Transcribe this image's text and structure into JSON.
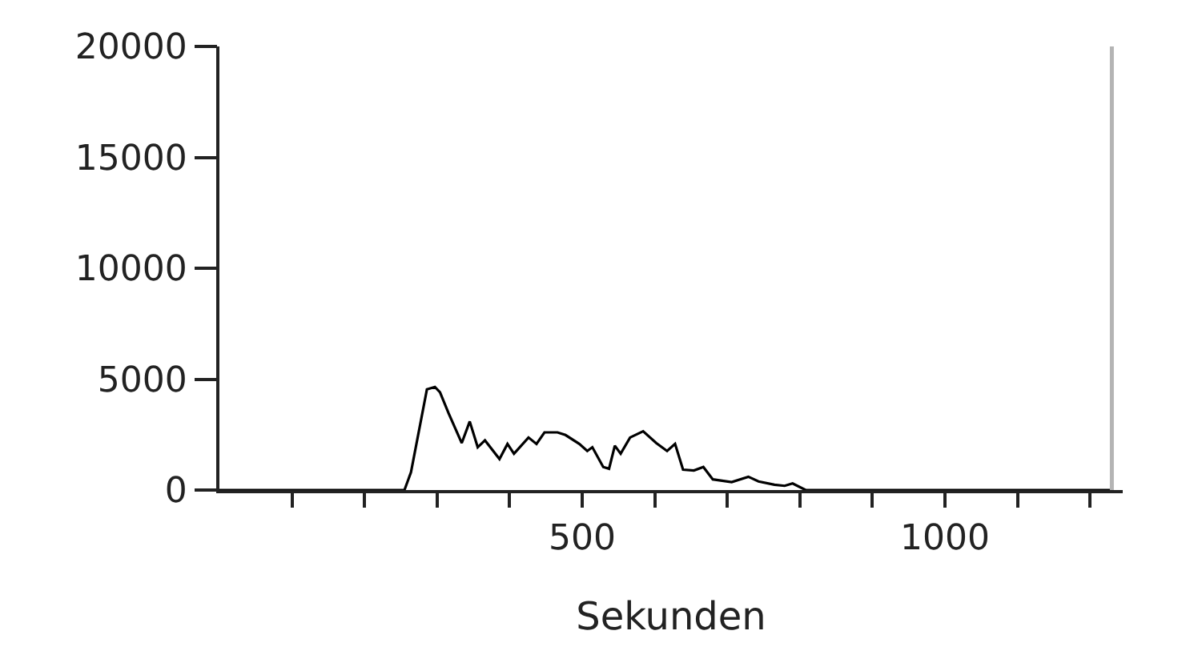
{
  "chart_data": {
    "type": "line",
    "xlabel": "Sekunden",
    "x": [
      0,
      255,
      264,
      286,
      297,
      304,
      316,
      334,
      345,
      356,
      366,
      386,
      397,
      406,
      426,
      437,
      448,
      466,
      477,
      496,
      507,
      514,
      529,
      537,
      545,
      553,
      566,
      584,
      602,
      617,
      628,
      639,
      654,
      667,
      680,
      691,
      706,
      729,
      743,
      765,
      779,
      790,
      808,
      850,
      1230
    ],
    "series": [
      {
        "color": "#000000",
        "values": [
          0,
          0,
          800,
          4540,
          4650,
          4410,
          3450,
          2120,
          3090,
          1930,
          2240,
          1400,
          2080,
          1640,
          2370,
          2080,
          2600,
          2600,
          2480,
          2080,
          1760,
          1930,
          1040,
          960,
          2000,
          1640,
          2370,
          2650,
          2120,
          1760,
          2080,
          920,
          880,
          1040,
          480,
          430,
          360,
          600,
          390,
          240,
          190,
          300,
          0,
          0,
          0
        ]
      }
    ],
    "xlim": [
      0,
      1245
    ],
    "ylim": [
      0,
      20000
    ],
    "xticks": [
      {
        "value": 100,
        "label": null
      },
      {
        "value": 200,
        "label": null
      },
      {
        "value": 300,
        "label": null
      },
      {
        "value": 400,
        "label": null
      },
      500,
      {
        "value": 600,
        "label": null
      },
      {
        "value": 700,
        "label": null
      },
      {
        "value": 800,
        "label": null
      },
      {
        "value": 900,
        "label": null
      },
      1000,
      {
        "value": 1100,
        "label": null
      },
      {
        "value": 1200,
        "label": null
      }
    ],
    "yticks": [
      0,
      5000,
      10000,
      15000,
      20000
    ],
    "ref_lines": [
      {
        "axis": "x",
        "value": 1230,
        "color": "#b4b4b4"
      }
    ],
    "marker": "none",
    "line_style": "solid"
  }
}
